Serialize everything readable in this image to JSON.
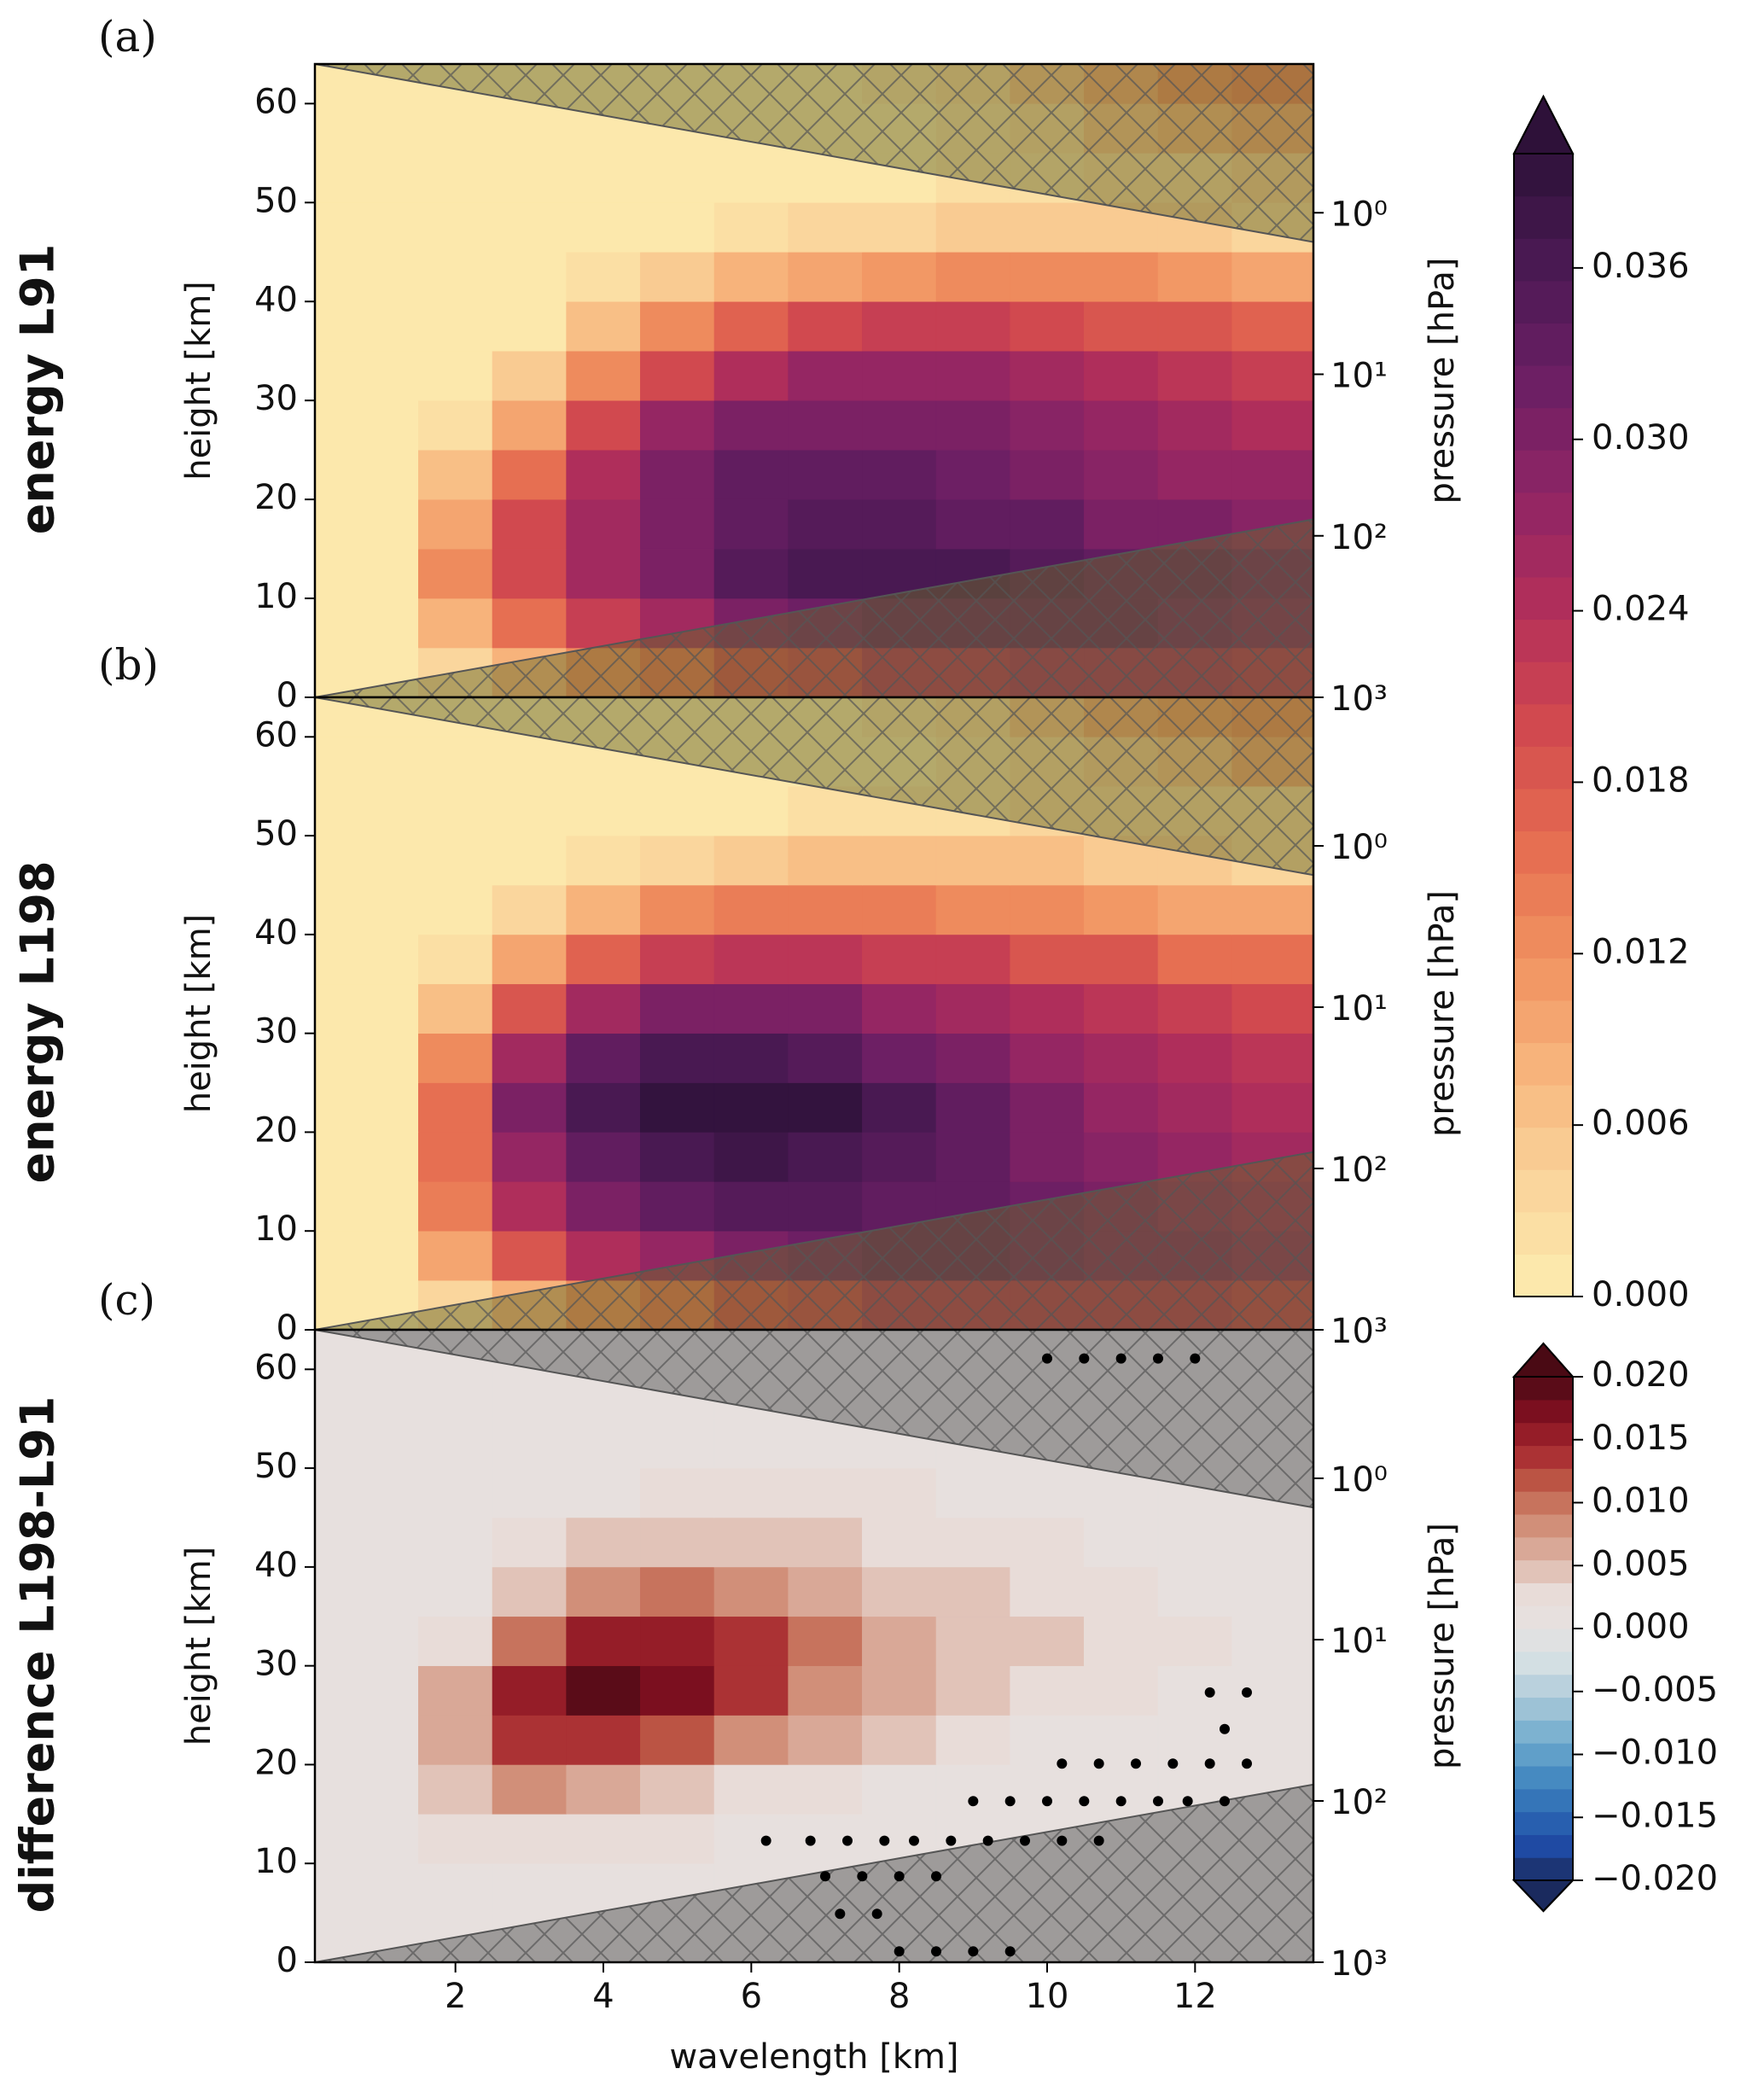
{
  "chart_data": [
    {
      "type": "heatmap",
      "label": "(a)",
      "title": "energy L91",
      "ylabel": "height [km]",
      "y2label": "pressure [hPa]",
      "xlim": [
        0.1,
        13.6
      ],
      "ylim": [
        0,
        64
      ],
      "yticks": [
        0,
        10,
        20,
        30,
        40,
        50,
        60
      ],
      "y2scale": "log",
      "y2lim": [
        1000,
        0.12
      ],
      "y2ticks": [
        {
          "value": 1000,
          "label": "10³"
        },
        {
          "value": 100,
          "label": "10²"
        },
        {
          "value": 10,
          "label": "10¹"
        },
        {
          "value": 1,
          "label": "10⁰"
        }
      ],
      "clim": [
        0,
        0.04
      ],
      "n_levels": 27,
      "colormap": [
        "#fdedb0",
        "#fad49b",
        "#f7b47c",
        "#f0905f",
        "#e56b50",
        "#d1494f",
        "#b32f5a",
        "#902565",
        "#6c1f64",
        "#4b1a54",
        "#2e1139"
      ],
      "mask_color": "#6b6a2a",
      "xbins": [
        0.1,
        1.5,
        2.5,
        3.5,
        4.5,
        5.5,
        6.5,
        7.5,
        8.5,
        9.5,
        10.5,
        11.5,
        12.5,
        13.6
      ],
      "ybins": [
        0,
        5,
        10,
        15,
        20,
        25,
        30,
        35,
        40,
        45,
        50,
        55,
        60,
        64
      ],
      "values": [
        [
          0,
          0.004,
          0.008,
          0.012,
          0.016,
          0.02,
          0.022,
          0.024,
          0.025,
          0.026,
          0.026,
          0.026,
          0.025
        ],
        [
          0,
          0.008,
          0.016,
          0.022,
          0.026,
          0.03,
          0.032,
          0.033,
          0.034,
          0.034,
          0.033,
          0.032,
          0.031
        ],
        [
          0,
          0.012,
          0.02,
          0.026,
          0.031,
          0.035,
          0.037,
          0.037,
          0.036,
          0.035,
          0.034,
          0.033,
          0.032
        ],
        [
          0,
          0.01,
          0.02,
          0.026,
          0.031,
          0.034,
          0.035,
          0.035,
          0.034,
          0.033,
          0.031,
          0.03,
          0.029
        ],
        [
          0,
          0.006,
          0.016,
          0.024,
          0.03,
          0.033,
          0.033,
          0.033,
          0.032,
          0.031,
          0.029,
          0.028,
          0.027
        ],
        [
          0,
          0.002,
          0.01,
          0.02,
          0.027,
          0.03,
          0.031,
          0.031,
          0.03,
          0.029,
          0.027,
          0.026,
          0.025
        ],
        [
          0,
          0,
          0.005,
          0.013,
          0.02,
          0.025,
          0.027,
          0.027,
          0.027,
          0.026,
          0.024,
          0.023,
          0.022
        ],
        [
          0,
          0,
          0.001,
          0.006,
          0.012,
          0.017,
          0.02,
          0.021,
          0.021,
          0.02,
          0.019,
          0.018,
          0.017
        ],
        [
          0,
          0,
          0,
          0.002,
          0.005,
          0.008,
          0.01,
          0.011,
          0.012,
          0.012,
          0.012,
          0.011,
          0.01
        ],
        [
          0,
          0,
          0,
          0,
          0.001,
          0.002,
          0.003,
          0.004,
          0.005,
          0.005,
          0.005,
          0.005,
          0.004
        ],
        [
          0,
          0,
          0,
          0,
          0,
          0,
          0.001,
          0.001,
          0.002,
          0.002,
          0.003,
          0.004,
          0.005
        ],
        [
          0,
          0,
          0,
          0,
          0,
          0,
          0,
          0.001,
          0.002,
          0.004,
          0.006,
          0.008,
          0.01
        ],
        [
          0,
          0,
          0,
          0,
          0,
          0,
          0.001,
          0.002,
          0.004,
          0.007,
          0.01,
          0.012,
          0.014
        ]
      ]
    },
    {
      "type": "heatmap",
      "label": "(b)",
      "title": "energy L198",
      "ylabel": "height [km]",
      "y2label": "pressure [hPa]",
      "xlim": [
        0.1,
        13.6
      ],
      "ylim": [
        0,
        64
      ],
      "yticks": [
        0,
        10,
        20,
        30,
        40,
        50,
        60
      ],
      "y2scale": "log",
      "y2lim": [
        1000,
        0.12
      ],
      "y2ticks": [
        {
          "value": 1000,
          "label": "10³"
        },
        {
          "value": 100,
          "label": "10²"
        },
        {
          "value": 10,
          "label": "10¹"
        },
        {
          "value": 1,
          "label": "10⁰"
        }
      ],
      "clim": [
        0,
        0.04
      ],
      "n_levels": 27,
      "colormap": [
        "#fdedb0",
        "#fad49b",
        "#f7b47c",
        "#f0905f",
        "#e56b50",
        "#d1494f",
        "#b32f5a",
        "#902565",
        "#6c1f64",
        "#4b1a54",
        "#2e1139"
      ],
      "mask_color": "#6b6a2a",
      "xbins": [
        0.1,
        1.5,
        2.5,
        3.5,
        4.5,
        5.5,
        6.5,
        7.5,
        8.5,
        9.5,
        10.5,
        11.5,
        12.5,
        13.6
      ],
      "ybins": [
        0,
        5,
        10,
        15,
        20,
        25,
        30,
        35,
        40,
        45,
        50,
        55,
        60,
        64
      ],
      "values": [
        [
          0,
          0.004,
          0.008,
          0.012,
          0.016,
          0.02,
          0.022,
          0.024,
          0.025,
          0.025,
          0.025,
          0.024,
          0.023
        ],
        [
          0,
          0.01,
          0.018,
          0.024,
          0.028,
          0.031,
          0.032,
          0.033,
          0.033,
          0.032,
          0.031,
          0.03,
          0.029
        ],
        [
          0,
          0.014,
          0.024,
          0.03,
          0.034,
          0.035,
          0.035,
          0.034,
          0.033,
          0.032,
          0.031,
          0.029,
          0.028
        ],
        [
          0,
          0.016,
          0.028,
          0.034,
          0.037,
          0.038,
          0.037,
          0.035,
          0.033,
          0.031,
          0.029,
          0.027,
          0.026
        ],
        [
          0,
          0.016,
          0.03,
          0.036,
          0.039,
          0.04,
          0.039,
          0.036,
          0.033,
          0.03,
          0.028,
          0.026,
          0.025
        ],
        [
          0,
          0.012,
          0.026,
          0.033,
          0.036,
          0.037,
          0.035,
          0.032,
          0.03,
          0.028,
          0.026,
          0.024,
          0.023
        ],
        [
          0,
          0.006,
          0.018,
          0.026,
          0.03,
          0.031,
          0.03,
          0.028,
          0.026,
          0.025,
          0.023,
          0.021,
          0.02
        ],
        [
          0,
          0.002,
          0.01,
          0.017,
          0.022,
          0.023,
          0.023,
          0.022,
          0.021,
          0.019,
          0.018,
          0.016,
          0.015
        ],
        [
          0,
          0,
          0.004,
          0.008,
          0.012,
          0.014,
          0.014,
          0.014,
          0.013,
          0.012,
          0.011,
          0.01,
          0.009
        ],
        [
          0,
          0,
          0.001,
          0.002,
          0.004,
          0.005,
          0.006,
          0.006,
          0.006,
          0.006,
          0.005,
          0.005,
          0.004
        ],
        [
          0,
          0,
          0,
          0,
          0.001,
          0.001,
          0.002,
          0.002,
          0.002,
          0.003,
          0.003,
          0.004,
          0.004
        ],
        [
          0,
          0,
          0,
          0,
          0,
          0,
          0,
          0.001,
          0.002,
          0.003,
          0.005,
          0.007,
          0.009
        ],
        [
          0,
          0,
          0,
          0,
          0,
          0,
          0.001,
          0.002,
          0.004,
          0.006,
          0.009,
          0.011,
          0.013
        ]
      ]
    },
    {
      "type": "heatmap",
      "label": "(c)",
      "title": "difference L198-L91",
      "ylabel": "height [km]",
      "y2label": "pressure [hPa]",
      "xlabel": "wavelength [km]",
      "xlim": [
        0.1,
        13.6
      ],
      "xticks": [
        2,
        4,
        6,
        8,
        10,
        12
      ],
      "ylim": [
        0,
        64
      ],
      "yticks": [
        0,
        10,
        20,
        30,
        40,
        50,
        60
      ],
      "y2scale": "log",
      "y2lim": [
        1000,
        0.12
      ],
      "y2ticks": [
        {
          "value": 1000,
          "label": "10³"
        },
        {
          "value": 100,
          "label": "10²"
        },
        {
          "value": 10,
          "label": "10¹"
        },
        {
          "value": 1,
          "label": "10⁰"
        }
      ],
      "clim": [
        -0.02,
        0.02
      ],
      "n_levels": 22,
      "colormap": [
        "#1a2a5e",
        "#1f4ba6",
        "#2f6db5",
        "#4a8fc3",
        "#76aecf",
        "#a9c8d8",
        "#d2dfe3",
        "#e6e2e1",
        "#e8dcd8",
        "#dcb1a2",
        "#cf8a72",
        "#bf5b48",
        "#a5262e",
        "#7d0f20",
        "#4a0a14"
      ],
      "mask_color": "#555555",
      "xbins": [
        0.1,
        1.5,
        2.5,
        3.5,
        4.5,
        5.5,
        6.5,
        7.5,
        8.5,
        9.5,
        10.5,
        11.5,
        12.5,
        13.6
      ],
      "ybins": [
        0,
        5,
        10,
        15,
        20,
        25,
        30,
        35,
        40,
        45,
        50,
        55,
        60,
        64
      ],
      "values": [
        [
          0,
          0,
          0,
          0,
          0,
          0,
          0,
          0,
          0,
          0,
          0,
          0,
          0
        ],
        [
          0,
          0,
          0.001,
          0.001,
          0.001,
          0.001,
          0,
          0,
          0,
          0,
          0,
          0,
          0
        ],
        [
          0,
          0.002,
          0.003,
          0.003,
          0.002,
          0.001,
          0.001,
          0,
          0,
          0,
          0,
          0,
          0
        ],
        [
          0,
          0.005,
          0.008,
          0.007,
          0.005,
          0.003,
          0.002,
          0.001,
          0.001,
          0,
          0,
          0,
          0
        ],
        [
          0,
          0.007,
          0.013,
          0.014,
          0.012,
          0.009,
          0.006,
          0.004,
          0.003,
          0.001,
          0,
          0,
          0
        ],
        [
          0,
          0.006,
          0.015,
          0.019,
          0.017,
          0.013,
          0.009,
          0.006,
          0.004,
          0.003,
          0.002,
          0.001,
          0.001
        ],
        [
          0,
          0.003,
          0.01,
          0.015,
          0.016,
          0.013,
          0.01,
          0.007,
          0.005,
          0.004,
          0.003,
          0.002,
          0.001
        ],
        [
          0,
          0.001,
          0.005,
          0.009,
          0.01,
          0.009,
          0.007,
          0.005,
          0.004,
          0.003,
          0.002,
          0.001,
          0
        ],
        [
          0,
          0,
          0.002,
          0.004,
          0.005,
          0.005,
          0.004,
          0.003,
          0.003,
          0.002,
          0.001,
          0,
          0
        ],
        [
          0,
          0,
          0,
          0.001,
          0.002,
          0.002,
          0.002,
          0.002,
          0.001,
          0.001,
          0,
          0,
          0
        ],
        [
          0,
          0,
          0,
          0,
          0,
          0,
          0,
          0,
          0,
          0,
          0,
          0,
          0
        ],
        [
          0,
          0,
          0,
          0,
          0,
          0,
          0,
          0,
          0,
          0,
          0,
          0,
          0
        ],
        [
          0,
          0,
          0,
          0,
          0,
          0,
          0,
          0,
          0,
          0,
          0,
          0,
          0
        ]
      ],
      "stippling": {
        "x": [
          8.0,
          8.5,
          9.0,
          9.5,
          7.2,
          7.7,
          7.0,
          7.5,
          8.0,
          8.5,
          6.2,
          6.8,
          7.3,
          7.8,
          8.2,
          8.7,
          9.2,
          9.7,
          10.2,
          10.7,
          9.0,
          9.5,
          10.0,
          10.5,
          11.0,
          11.5,
          11.9,
          12.4,
          10.2,
          10.7,
          11.2,
          11.7,
          12.2,
          12.7,
          12.4,
          12.2,
          12.7,
          10.0,
          10.5,
          11.0,
          11.5,
          12.0
        ],
        "y": [
          1.1,
          1.1,
          1.1,
          1.1,
          4.9,
          4.9,
          8.7,
          8.7,
          8.7,
          8.7,
          12.3,
          12.3,
          12.3,
          12.3,
          12.3,
          12.3,
          12.3,
          12.3,
          12.3,
          12.3,
          16.3,
          16.3,
          16.3,
          16.3,
          16.3,
          16.3,
          16.3,
          16.3,
          20.1,
          20.1,
          20.1,
          20.1,
          20.1,
          20.1,
          23.6,
          27.3,
          27.3,
          61.1,
          61.1,
          61.1,
          61.1,
          61.1
        ]
      }
    },
    {
      "type": "colorbar",
      "ylim": [
        0,
        0.04
      ],
      "n_levels": 27,
      "colormap": [
        "#fdedb0",
        "#fad49b",
        "#f7b47c",
        "#f0905f",
        "#e56b50",
        "#d1494f",
        "#b32f5a",
        "#902565",
        "#6c1f64",
        "#4b1a54",
        "#2e1139"
      ],
      "yticks": [
        {
          "value": 0,
          "label": "0.000"
        },
        {
          "value": 0.006,
          "label": "0.006"
        },
        {
          "value": 0.012,
          "label": "0.012"
        },
        {
          "value": 0.018,
          "label": "0.018"
        },
        {
          "value": 0.024,
          "label": "0.024"
        },
        {
          "value": 0.03,
          "label": "0.030"
        },
        {
          "value": 0.036,
          "label": "0.036"
        }
      ]
    },
    {
      "type": "colorbar",
      "ylim": [
        -0.02,
        0.02
      ],
      "n_levels": 22,
      "colormap": [
        "#1a2a5e",
        "#1f4ba6",
        "#2f6db5",
        "#4a8fc3",
        "#76aecf",
        "#a9c8d8",
        "#d2dfe3",
        "#e6e2e1",
        "#e8dcd8",
        "#dcb1a2",
        "#cf8a72",
        "#bf5b48",
        "#a5262e",
        "#7d0f20",
        "#4a0a14"
      ],
      "yticks": [
        {
          "value": -0.02,
          "label": "−0.020"
        },
        {
          "value": -0.015,
          "label": "−0.015"
        },
        {
          "value": -0.01,
          "label": "−0.010"
        },
        {
          "value": -0.005,
          "label": "−0.005"
        },
        {
          "value": 0,
          "label": "0.000"
        },
        {
          "value": 0.005,
          "label": "0.005"
        },
        {
          "value": 0.01,
          "label": "0.010"
        },
        {
          "value": 0.015,
          "label": "0.015"
        },
        {
          "value": 0.02,
          "label": "0.020"
        }
      ]
    }
  ]
}
